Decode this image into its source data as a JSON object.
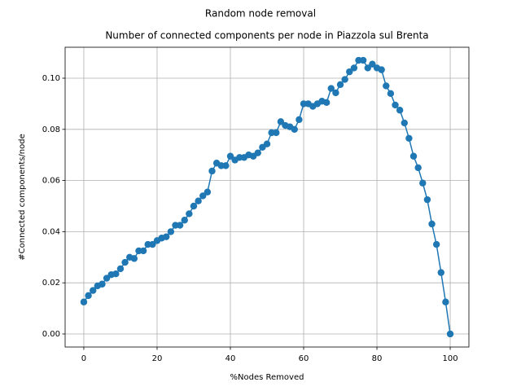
{
  "chart_data": {
    "type": "line",
    "suptitle": "Random node removal",
    "title": "Number of connected components per node in Piazzola sul Brenta",
    "xlabel": "%Nodes Removed",
    "ylabel": "#Connected components/node",
    "x": [
      0,
      1.25,
      2.5,
      3.75,
      5,
      6.25,
      7.5,
      8.75,
      10,
      11.25,
      12.5,
      13.75,
      15,
      16.25,
      17.5,
      18.75,
      20,
      21.25,
      22.5,
      23.75,
      25,
      26.25,
      27.5,
      28.75,
      30,
      31.25,
      32.5,
      33.75,
      35,
      36.25,
      37.5,
      38.75,
      40,
      41.25,
      42.5,
      43.75,
      45,
      46.25,
      47.5,
      48.75,
      50,
      51.25,
      52.5,
      53.75,
      55,
      56.25,
      57.5,
      58.75,
      60,
      61.25,
      62.5,
      63.75,
      65,
      66.25,
      67.5,
      68.75,
      70,
      71.25,
      72.5,
      73.75,
      75,
      76.25,
      77.5,
      78.75,
      80,
      81.25,
      82.5,
      83.75,
      85,
      86.25,
      87.5,
      88.75,
      90,
      91.25,
      92.5,
      93.75,
      95,
      96.25,
      97.5,
      98.75,
      100
    ],
    "series": [
      {
        "name": "components",
        "color": "#1f77b4",
        "values": [
          0.0125,
          0.015,
          0.017,
          0.0188,
          0.0195,
          0.0218,
          0.0232,
          0.0235,
          0.0255,
          0.028,
          0.03,
          0.0295,
          0.0325,
          0.0325,
          0.035,
          0.035,
          0.0365,
          0.0375,
          0.038,
          0.04,
          0.0425,
          0.0425,
          0.0445,
          0.047,
          0.05,
          0.052,
          0.054,
          0.0555,
          0.0637,
          0.0668,
          0.0658,
          0.0658,
          0.0695,
          0.068,
          0.069,
          0.069,
          0.07,
          0.0695,
          0.0708,
          0.073,
          0.0743,
          0.0787,
          0.0787,
          0.083,
          0.0815,
          0.081,
          0.08,
          0.0838,
          0.09,
          0.09,
          0.089,
          0.09,
          0.091,
          0.0905,
          0.096,
          0.0943,
          0.0975,
          0.0995,
          0.1025,
          0.104,
          0.107,
          0.107,
          0.104,
          0.1055,
          0.104,
          0.1033,
          0.097,
          0.094,
          0.0895,
          0.0875,
          0.0825,
          0.0765,
          0.0695,
          0.065,
          0.059,
          0.0525,
          0.043,
          0.035,
          0.024,
          0.0125,
          0
        ]
      }
    ],
    "xlim": [
      -5.1,
      105.1
    ],
    "ylim": [
      -0.0051,
      0.1121
    ],
    "xticks": [
      0,
      20,
      40,
      60,
      80,
      100
    ],
    "yticks": [
      {
        "value": 0,
        "label": "0.00"
      },
      {
        "value": 0.02,
        "label": "0.02"
      },
      {
        "value": 0.04,
        "label": "0.04"
      },
      {
        "value": 0.06,
        "label": "0.06"
      },
      {
        "value": 0.08,
        "label": "0.08"
      },
      {
        "value": 0.1,
        "label": "0.10"
      }
    ],
    "grid": true
  }
}
